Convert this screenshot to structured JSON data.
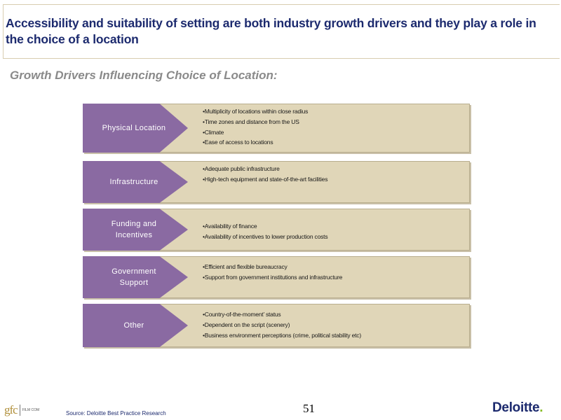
{
  "header": {
    "title": "Accessibility and suitability of setting are both industry growth drivers and they play a role in the choice of a location"
  },
  "subtitle": "Growth Drivers Influencing Choice of Location:",
  "drivers": [
    {
      "label": "Physical Location",
      "bullets": [
        "•Multiplicity of locations within close radius",
        "•Time zones and distance from the US",
        "•Climate",
        "•Ease of access to locations"
      ]
    },
    {
      "label": "Infrastructure",
      "bullets": [
        "•Adequate public infrastructure",
        "•High-tech equipment and state-of-the-art facilities"
      ]
    },
    {
      "label": "Funding and Incentives",
      "bullets": [
        "•Availability of finance",
        "•Availability of incentives to lower production costs"
      ]
    },
    {
      "label": "Government Support",
      "bullets": [
        "•Efficient and flexible bureaucracy",
        "•Support from government institutions and infrastructure"
      ]
    },
    {
      "label": "Other",
      "bullets": [
        "•Country-of-the-moment’ status",
        "•Dependent on the script (scenery)",
        "•Business environment perceptions (crime, political stability etc)"
      ]
    }
  ],
  "footer": {
    "source": "Source: Deloitte Best Practice Research",
    "page_number": "51",
    "left_logo": "gfc",
    "left_logo_small": "FILM COM",
    "right_logo": "Deloitte",
    "right_logo_dot": "."
  },
  "colors": {
    "title": "#1c2a6e",
    "arrow": "#8a6aa2",
    "row_bg": "#e0d6b8",
    "subtitle": "#8a8a8a",
    "deloitte_dot": "#86bc25"
  }
}
